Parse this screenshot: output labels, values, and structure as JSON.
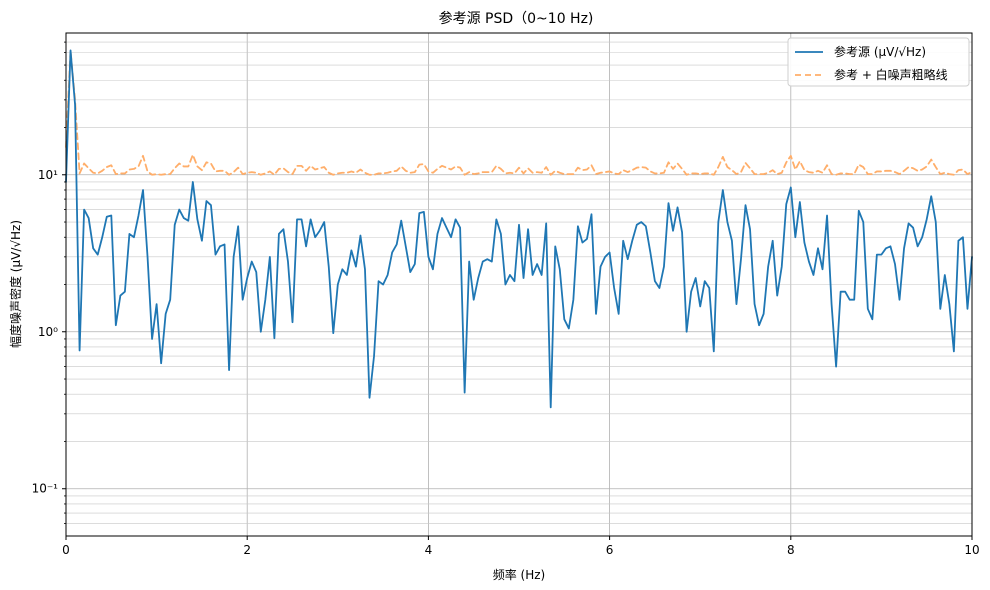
{
  "chart_data": {
    "type": "line",
    "title": "参考源 PSD（0~10 Hz)",
    "xlabel": "频率 (Hz)",
    "ylabel": "幅度噪声密度 (μV/√Hz)",
    "xlim": [
      0,
      10
    ],
    "ylim": [
      0.05,
      80
    ],
    "x_ticks": [
      0,
      2,
      4,
      6,
      8,
      10
    ],
    "y_ticks": [
      0.1,
      1,
      10
    ],
    "y_tick_labels": [
      "10⁻¹",
      "10⁰",
      "10¹"
    ],
    "grid": true,
    "legend_position": "top-right",
    "series": [
      {
        "name": "参考源 (μV/√Hz)",
        "color": "#1f77b4",
        "style": "solid",
        "x": [
          0,
          0.05,
          0.1,
          0.15,
          0.2,
          0.25,
          0.3,
          0.35,
          0.4,
          0.45,
          0.5,
          0.55,
          0.6,
          0.65,
          0.7,
          0.75,
          0.8,
          0.85,
          0.9,
          0.95,
          1.0,
          1.05,
          1.1,
          1.15,
          1.2,
          1.25,
          1.3,
          1.35,
          1.4,
          1.45,
          1.5,
          1.55,
          1.6,
          1.65,
          1.7,
          1.75,
          1.8,
          1.85,
          1.9,
          1.95,
          2.0,
          2.05,
          2.1,
          2.15,
          2.2,
          2.25,
          2.3,
          2.35,
          2.4,
          2.45,
          2.5,
          2.55,
          2.6,
          2.65,
          2.7,
          2.75,
          2.8,
          2.85,
          2.9,
          2.95,
          3.0,
          3.05,
          3.1,
          3.15,
          3.2,
          3.25,
          3.3,
          3.35,
          3.4,
          3.45,
          3.5,
          3.55,
          3.6,
          3.65,
          3.7,
          3.75,
          3.8,
          3.85,
          3.9,
          3.95,
          4.0,
          4.05,
          4.1,
          4.15,
          4.2,
          4.25,
          4.3,
          4.35,
          4.4,
          4.45,
          4.5,
          4.55,
          4.6,
          4.65,
          4.7,
          4.75,
          4.8,
          4.85,
          4.9,
          4.95,
          5.0,
          5.05,
          5.1,
          5.15,
          5.2,
          5.25,
          5.3,
          5.35,
          5.4,
          5.45,
          5.5,
          5.55,
          5.6,
          5.65,
          5.7,
          5.75,
          5.8,
          5.85,
          5.9,
          5.95,
          6.0,
          6.05,
          6.1,
          6.15,
          6.2,
          6.25,
          6.3,
          6.35,
          6.4,
          6.45,
          6.5,
          6.55,
          6.6,
          6.65,
          6.7,
          6.75,
          6.8,
          6.85,
          6.9,
          6.95,
          7.0,
          7.05,
          7.1,
          7.15,
          7.2,
          7.25,
          7.3,
          7.35,
          7.4,
          7.45,
          7.5,
          7.55,
          7.6,
          7.65,
          7.7,
          7.75,
          7.8,
          7.85,
          7.9,
          7.95,
          8.0,
          8.05,
          8.1,
          8.15,
          8.2,
          8.25,
          8.3,
          8.35,
          8.4,
          8.45,
          8.5,
          8.55,
          8.6,
          8.65,
          8.7,
          8.75,
          8.8,
          8.85,
          8.9,
          8.95,
          9.0,
          9.05,
          9.1,
          9.15,
          9.2,
          9.25,
          9.3,
          9.35,
          9.4,
          9.45,
          9.5,
          9.55,
          9.6,
          9.65,
          9.7,
          9.75,
          9.8,
          9.85,
          9.9,
          9.95,
          10.0
        ],
        "values": [
          9.0,
          62.0,
          28.0,
          0.76,
          6.0,
          5.3,
          3.4,
          3.1,
          4.0,
          5.4,
          5.5,
          1.1,
          1.7,
          1.8,
          4.2,
          4.0,
          5.5,
          8.0,
          3.0,
          0.9,
          1.5,
          0.63,
          1.3,
          1.6,
          4.8,
          6.0,
          5.3,
          5.1,
          9.0,
          5.2,
          3.8,
          6.8,
          6.4,
          3.1,
          3.5,
          3.6,
          0.57,
          3.0,
          4.7,
          1.6,
          2.2,
          2.8,
          2.4,
          1.0,
          1.6,
          3.0,
          0.91,
          4.2,
          4.5,
          2.8,
          1.15,
          5.2,
          5.2,
          3.5,
          5.2,
          4.0,
          4.4,
          5.0,
          2.6,
          0.98,
          2.0,
          2.5,
          2.3,
          3.3,
          2.6,
          4.1,
          2.5,
          0.38,
          0.7,
          2.1,
          2.0,
          2.3,
          3.2,
          3.6,
          5.1,
          3.5,
          2.4,
          2.7,
          5.7,
          5.8,
          3.0,
          2.5,
          4.2,
          5.3,
          4.6,
          4.0,
          5.2,
          4.6,
          0.41,
          2.8,
          1.6,
          2.2,
          2.8,
          2.9,
          2.8,
          5.2,
          4.2,
          2.0,
          2.3,
          2.1,
          4.8,
          2.2,
          4.5,
          2.3,
          2.7,
          2.3,
          4.9,
          0.33,
          3.5,
          2.5,
          1.2,
          1.05,
          1.6,
          4.7,
          3.7,
          3.9,
          5.6,
          1.3,
          2.6,
          3.0,
          3.2,
          1.9,
          1.3,
          3.8,
          2.9,
          3.8,
          4.8,
          5.0,
          4.7,
          3.2,
          2.1,
          1.9,
          2.6,
          6.6,
          4.4,
          6.2,
          4.3,
          1.0,
          1.8,
          2.2,
          1.45,
          2.1,
          1.9,
          0.75,
          5.0,
          8.0,
          5.0,
          3.8,
          1.5,
          2.9,
          6.4,
          4.5,
          1.5,
          1.1,
          1.3,
          2.6,
          3.8,
          1.7,
          2.6,
          6.5,
          8.3,
          4.0,
          6.7,
          3.7,
          2.8,
          2.3,
          3.4,
          2.5,
          5.5,
          1.5,
          0.6,
          1.8,
          1.8,
          1.6,
          1.6,
          5.9,
          5.0,
          1.4,
          1.2,
          3.1,
          3.1,
          3.4,
          3.5,
          2.7,
          1.6,
          3.4,
          4.9,
          4.6,
          3.5,
          4.0,
          5.2,
          7.3,
          5.0,
          1.4,
          2.3,
          1.5,
          0.75,
          3.8,
          4.0,
          1.4,
          3.0
        ]
      },
      {
        "name": "参考 + 白噪声粗略线",
        "color": "#ffae6a",
        "style": "dashed",
        "x": [
          0,
          0.05,
          0.1,
          0.15,
          0.2,
          0.25,
          0.3,
          0.35,
          0.4,
          0.45,
          0.5,
          0.55,
          0.6,
          0.65,
          0.7,
          0.75,
          0.8,
          0.85,
          0.9,
          0.95,
          1.0,
          1.05,
          1.1,
          1.15,
          1.2,
          1.25,
          1.3,
          1.35,
          1.4,
          1.45,
          1.5,
          1.55,
          1.6,
          1.65,
          1.7,
          1.75,
          1.8,
          1.85,
          1.9,
          1.95,
          2.0,
          2.05,
          2.1,
          2.15,
          2.2,
          2.25,
          2.3,
          2.35,
          2.4,
          2.45,
          2.5,
          2.55,
          2.6,
          2.65,
          2.7,
          2.75,
          2.8,
          2.85,
          2.9,
          2.95,
          3.0,
          3.05,
          3.1,
          3.15,
          3.2,
          3.25,
          3.3,
          3.35,
          3.4,
          3.45,
          3.5,
          3.55,
          3.6,
          3.65,
          3.7,
          3.75,
          3.8,
          3.85,
          3.9,
          3.95,
          4.0,
          4.05,
          4.1,
          4.15,
          4.2,
          4.25,
          4.3,
          4.35,
          4.4,
          4.45,
          4.5,
          4.55,
          4.6,
          4.65,
          4.7,
          4.75,
          4.8,
          4.85,
          4.9,
          4.95,
          5.0,
          5.05,
          5.1,
          5.15,
          5.2,
          5.25,
          5.3,
          5.35,
          5.4,
          5.45,
          5.5,
          5.55,
          5.6,
          5.65,
          5.7,
          5.75,
          5.8,
          5.85,
          5.9,
          5.95,
          6.0,
          6.05,
          6.1,
          6.15,
          6.2,
          6.25,
          6.3,
          6.35,
          6.4,
          6.45,
          6.5,
          6.55,
          6.6,
          6.65,
          6.7,
          6.75,
          6.8,
          6.85,
          6.9,
          6.95,
          7.0,
          7.05,
          7.1,
          7.15,
          7.2,
          7.25,
          7.3,
          7.35,
          7.4,
          7.45,
          7.5,
          7.55,
          7.6,
          7.65,
          7.7,
          7.75,
          7.8,
          7.85,
          7.9,
          7.95,
          8.0,
          8.05,
          8.1,
          8.15,
          8.2,
          8.25,
          8.3,
          8.35,
          8.4,
          8.45,
          8.5,
          8.55,
          8.6,
          8.65,
          8.7,
          8.75,
          8.8,
          8.85,
          8.9,
          8.95,
          9.0,
          9.05,
          9.1,
          9.15,
          9.2,
          9.25,
          9.3,
          9.35,
          9.4,
          9.45,
          9.5,
          9.55,
          9.6,
          9.65,
          9.7,
          9.75,
          9.8,
          9.85,
          9.9,
          9.95,
          10.0
        ],
        "values": [
          15.0,
          62.0,
          30.0,
          10.2,
          11.8,
          11.0,
          10.3,
          10.2,
          10.6,
          11.2,
          11.5,
          10.1,
          10.2,
          10.2,
          10.8,
          10.9,
          11.3,
          13.2,
          10.5,
          10.0,
          10.1,
          10.0,
          10.1,
          10.1,
          11.0,
          11.8,
          11.3,
          11.3,
          13.4,
          11.3,
          10.7,
          12.0,
          11.8,
          10.5,
          10.6,
          10.6,
          10.0,
          10.4,
          11.1,
          10.1,
          10.3,
          10.4,
          10.3,
          10.0,
          10.2,
          10.5,
          10.0,
          10.9,
          11.0,
          10.4,
          10.1,
          11.4,
          11.4,
          10.6,
          11.4,
          10.8,
          11.0,
          11.2,
          10.3,
          10.0,
          10.2,
          10.3,
          10.3,
          10.5,
          10.3,
          10.8,
          10.3,
          10.0,
          10.0,
          10.2,
          10.2,
          10.3,
          10.5,
          10.6,
          11.3,
          10.6,
          10.3,
          10.4,
          11.6,
          11.7,
          10.5,
          10.3,
          10.9,
          11.4,
          11.1,
          10.8,
          11.3,
          11.1,
          10.0,
          10.4,
          10.1,
          10.2,
          10.4,
          10.4,
          10.4,
          11.4,
          10.9,
          10.2,
          10.3,
          10.2,
          11.1,
          10.2,
          11.0,
          10.3,
          10.4,
          10.3,
          11.2,
          10.0,
          10.6,
          10.3,
          10.1,
          10.1,
          10.1,
          11.1,
          10.7,
          10.8,
          11.5,
          10.1,
          10.3,
          10.4,
          10.5,
          10.2,
          10.1,
          10.7,
          10.4,
          10.7,
          11.1,
          11.2,
          11.1,
          10.5,
          10.2,
          10.2,
          10.3,
          12.0,
          10.9,
          11.8,
          10.9,
          10.0,
          10.2,
          10.2,
          10.1,
          10.2,
          10.2,
          10.0,
          11.2,
          13.0,
          11.2,
          10.7,
          10.1,
          10.4,
          11.9,
          11.0,
          10.1,
          10.1,
          10.1,
          10.3,
          10.7,
          10.1,
          10.3,
          12.0,
          13.2,
          10.8,
          12.2,
          10.7,
          10.4,
          10.3,
          10.6,
          10.3,
          11.5,
          10.1,
          10.0,
          10.2,
          10.2,
          10.1,
          10.1,
          11.6,
          11.2,
          10.1,
          10.1,
          10.5,
          10.5,
          10.6,
          10.6,
          10.4,
          10.1,
          10.6,
          11.2,
          11.0,
          10.6,
          10.8,
          11.3,
          12.5,
          11.2,
          10.1,
          10.3,
          10.1,
          10.0,
          10.7,
          10.8,
          10.1,
          10.4
        ]
      }
    ]
  }
}
